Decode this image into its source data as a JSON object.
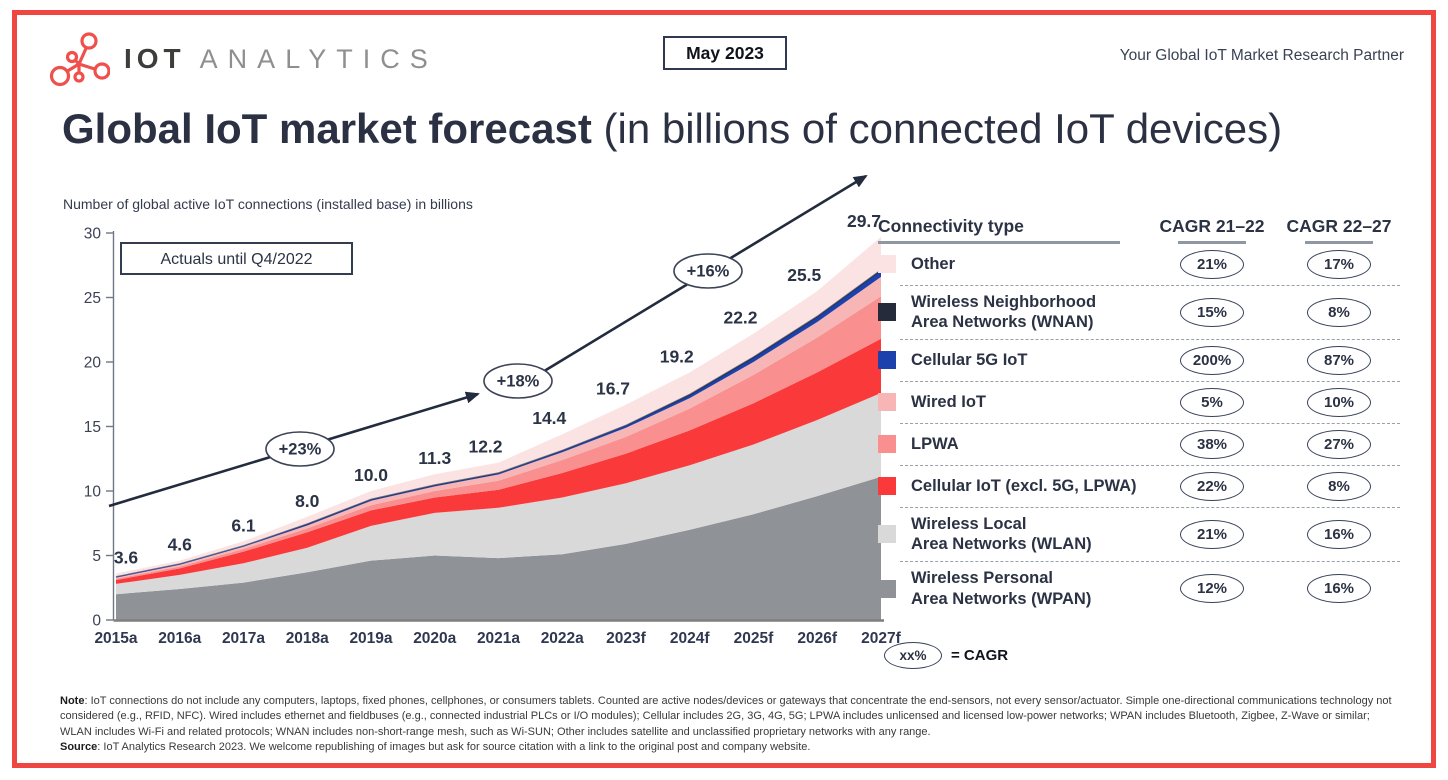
{
  "header": {
    "logo_text_iot": "IOT",
    "logo_text_analytics": "ANALYTICS",
    "date_badge": "May 2023",
    "tagline": "Your Global IoT Market Research Partner"
  },
  "title": {
    "main": "Global IoT market forecast",
    "suffix": " (in billions of connected IoT devices)"
  },
  "subtitle": "Number of global active IoT connections (installed base) in billions",
  "chart_data": {
    "type": "area",
    "stacked": true,
    "title": "Global IoT market forecast (in billions of connected IoT devices)",
    "ylabel": "Number of global active IoT connections (installed base) in billions",
    "x_labels": [
      "2015a",
      "2016a",
      "2017a",
      "2018a",
      "2019a",
      "2020a",
      "2021a",
      "2022a",
      "2023f",
      "2024f",
      "2025f",
      "2026f",
      "2027f"
    ],
    "y_ticks": [
      0,
      5,
      10,
      15,
      20,
      25,
      30
    ],
    "y_max": 30,
    "grid": false,
    "legend_position": "right-table",
    "totals": [
      3.6,
      4.6,
      6.1,
      8.0,
      10.0,
      11.3,
      12.2,
      14.4,
      16.7,
      19.2,
      22.2,
      25.5,
      29.7
    ],
    "series": [
      {
        "name": "Wireless Personal Area Networks (WPAN)",
        "color": "#8f9397",
        "values": [
          2.0,
          2.4,
          2.9,
          3.7,
          4.6,
          5.0,
          4.8,
          5.1,
          5.9,
          7.0,
          8.2,
          9.6,
          11.1
        ]
      },
      {
        "name": "Wireless Local Area Networks (WLAN)",
        "color": "#d9d9d9",
        "values": [
          0.8,
          1.1,
          1.5,
          1.9,
          2.7,
          3.3,
          3.9,
          4.4,
          4.7,
          5.0,
          5.4,
          5.9,
          6.5
        ]
      },
      {
        "name": "Cellular IoT (excl. 5G, LPWA)",
        "color": "#fa3a3a",
        "values": [
          0.3,
          0.5,
          0.9,
          1.2,
          1.2,
          1.2,
          1.4,
          1.9,
          2.3,
          2.7,
          3.2,
          3.7,
          4.2
        ]
      },
      {
        "name": "LPWA",
        "color": "#f98f8f",
        "values": [
          0.1,
          0.15,
          0.2,
          0.3,
          0.4,
          0.5,
          0.7,
          1.0,
          1.3,
          1.7,
          2.2,
          2.7,
          3.3
        ]
      },
      {
        "name": "Wired IoT",
        "color": "#f8b5b5",
        "values": [
          0.15,
          0.2,
          0.25,
          0.3,
          0.4,
          0.4,
          0.5,
          0.6,
          0.7,
          0.8,
          1.0,
          1.2,
          1.5
        ]
      },
      {
        "name": "Cellular 5G IoT",
        "color": "#1c41ad",
        "outline_color": "#1c41ad",
        "values": [
          0.0,
          0.0,
          0.0,
          0.0,
          0.01,
          0.02,
          0.05,
          0.1,
          0.15,
          0.2,
          0.3,
          0.35,
          0.45
        ]
      },
      {
        "name": "Wireless Neighborhood Area Networks (WNAN)",
        "color": "#252b3b",
        "outline_color": "#6a7180",
        "values": [
          0.05,
          0.05,
          0.05,
          0.1,
          0.1,
          0.1,
          0.1,
          0.1,
          0.1,
          0.15,
          0.15,
          0.15,
          0.15
        ]
      },
      {
        "name": "Other",
        "color": "#fbe3e3",
        "values": [
          0.2,
          0.2,
          0.3,
          0.5,
          0.59,
          0.78,
          0.75,
          1.2,
          1.55,
          1.65,
          1.75,
          1.9,
          2.5
        ]
      }
    ],
    "annotations": {
      "actuals_box": "Actuals until Q4/2022",
      "growth_labels": [
        "+23%",
        "+18%",
        "+16%"
      ]
    }
  },
  "legend": {
    "header": {
      "type_col": "Connectivity type",
      "cagr1": "CAGR 21–22",
      "cagr2": "CAGR 22–27"
    },
    "rows": [
      {
        "label": "Other",
        "color": "#fbe3e3",
        "cagr_21_22": "21%",
        "cagr_22_27": "17%"
      },
      {
        "label": "Wireless Neighborhood\nArea Networks (WNAN)",
        "color": "#252b3b",
        "cagr_21_22": "15%",
        "cagr_22_27": "8%"
      },
      {
        "label": "Cellular 5G IoT",
        "color": "#1c41ad",
        "cagr_21_22": "200%",
        "cagr_22_27": "87%"
      },
      {
        "label": "Wired IoT",
        "color": "#f8b5b5",
        "cagr_21_22": "5%",
        "cagr_22_27": "10%"
      },
      {
        "label": "LPWA",
        "color": "#f98f8f",
        "cagr_21_22": "38%",
        "cagr_22_27": "27%"
      },
      {
        "label": "Cellular IoT (excl. 5G, LPWA)",
        "color": "#fa3a3a",
        "cagr_21_22": "22%",
        "cagr_22_27": "8%"
      },
      {
        "label": "Wireless Local\nArea Networks (WLAN)",
        "color": "#d9d9d9",
        "cagr_21_22": "21%",
        "cagr_22_27": "16%"
      },
      {
        "label": "Wireless Personal\nArea Networks (WPAN)",
        "color": "#8f9397",
        "cagr_21_22": "12%",
        "cagr_22_27": "16%"
      }
    ],
    "cagr_note": {
      "oval": "xx%",
      "text": "= CAGR"
    }
  },
  "footnote": {
    "note_label": "Note",
    "note_text": ": IoT connections do not include any computers, laptops, fixed phones, cellphones, or consumers tablets. Counted are active nodes/devices or gateways that concentrate the end-sensors, not every sensor/actuator. Simple one-directional communications technology not considered (e.g., RFID, NFC). Wired includes ethernet and fieldbuses (e.g., connected industrial PLCs or I/O modules); Cellular includes 2G, 3G, 4G, 5G; LPWA includes unlicensed and licensed low-power networks; WPAN includes Bluetooth, Zigbee, Z-Wave or similar; WLAN includes Wi-Fi and related protocols; WNAN includes non-short-range mesh, such as Wi-SUN; Other includes satellite and unclassified proprietary networks with any range.",
    "source_label": "Source",
    "source_text": ": IoT Analytics Research 2023. We welcome republishing of images but ask for source citation with a link to the original post and company website."
  }
}
